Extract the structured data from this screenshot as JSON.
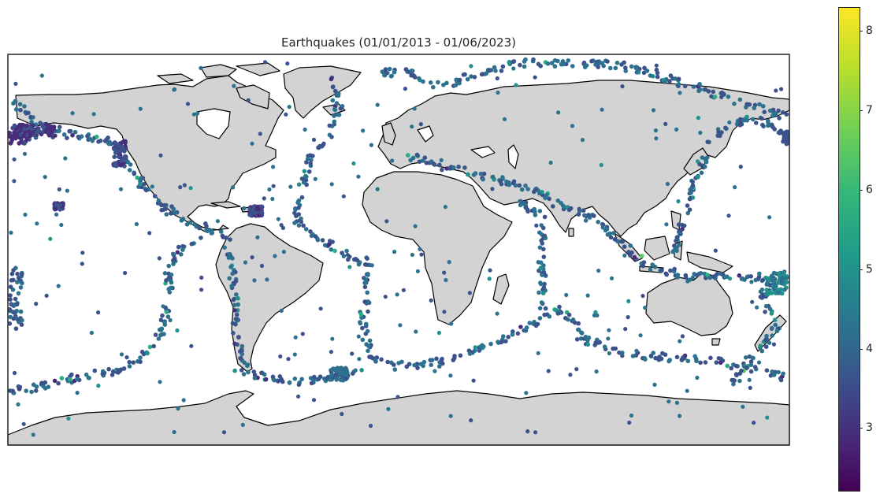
{
  "chart_data": {
    "type": "scatter",
    "title": "Earthquakes (01/01/2013 - 01/06/2023)",
    "projection": "equirectangular",
    "xlim": [
      -180,
      180
    ],
    "ylim": [
      -90,
      90
    ],
    "colorbar": {
      "colormap": "viridis",
      "range": [
        2.2,
        8.3
      ],
      "ticks": [
        "3",
        "4",
        "5",
        "6",
        "7",
        "8"
      ],
      "tick_values": [
        3,
        4,
        5,
        6,
        7,
        8
      ]
    },
    "land_color": "#d3d3d3",
    "coast_color": "#000000",
    "grid": false
  }
}
